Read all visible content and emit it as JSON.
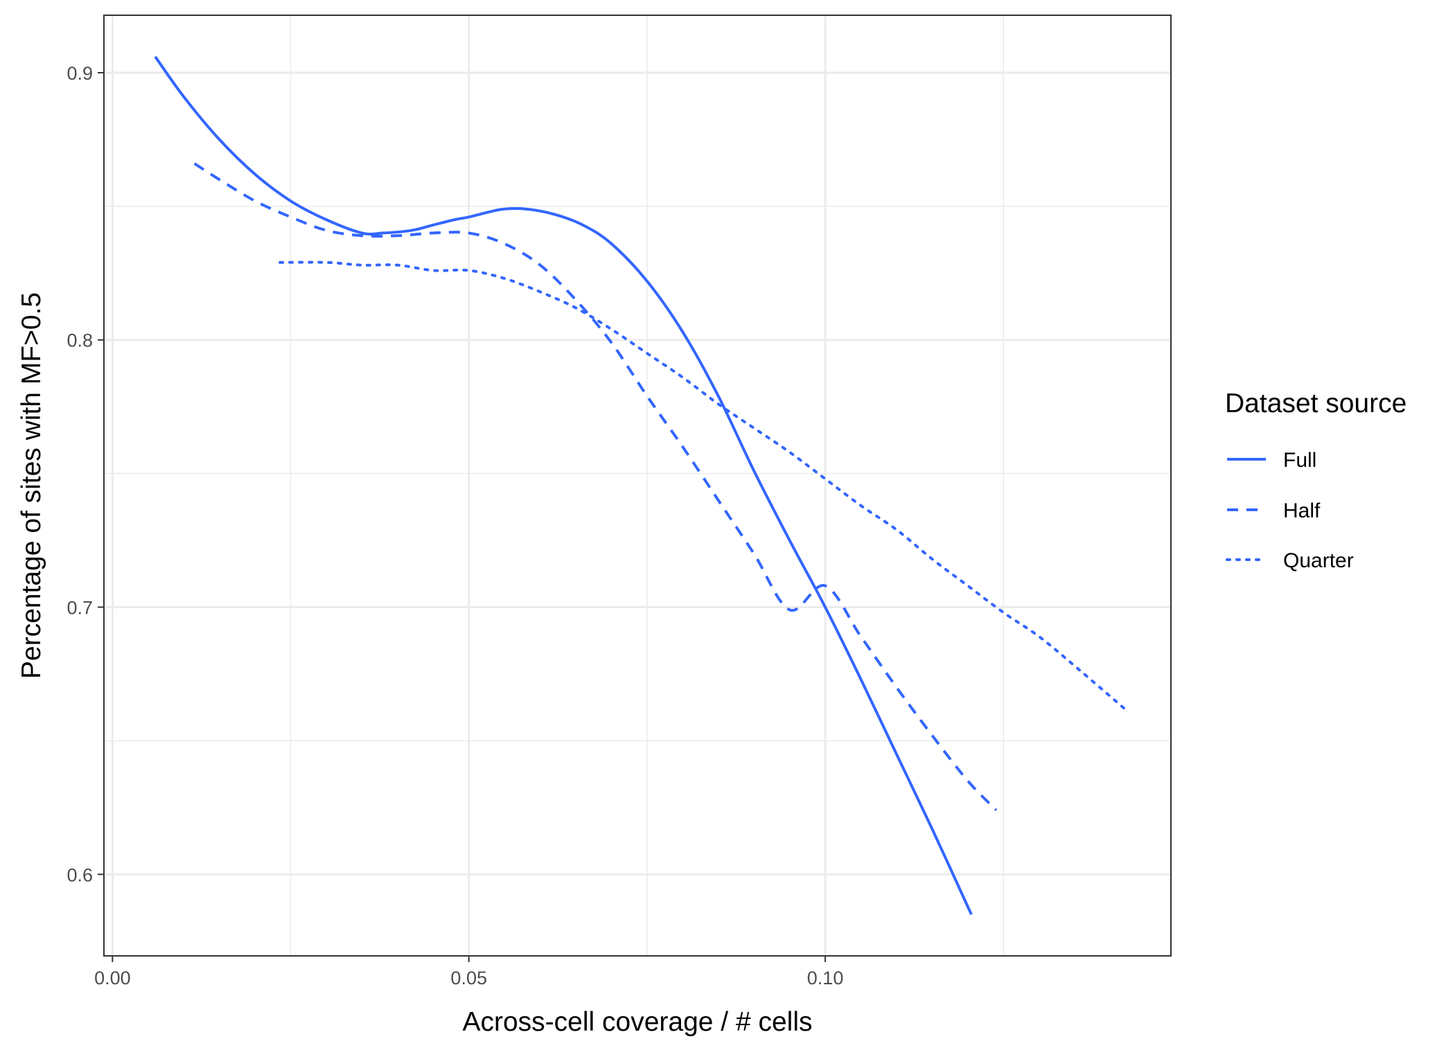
{
  "chart_data": {
    "type": "line",
    "title": "",
    "xlabel": "Across-cell coverage / # cells",
    "ylabel": "Percentage of sites with MF>0.5",
    "xlim": [
      -0.0012,
      0.1485
    ],
    "ylim": [
      0.5695,
      0.9215
    ],
    "x_ticks": [
      0.0,
      0.05,
      0.1
    ],
    "x_tick_labels": [
      "0.00",
      "0.05",
      "0.10"
    ],
    "x_minor_ticks": [
      0.025,
      0.075,
      0.125
    ],
    "y_ticks": [
      0.6,
      0.7,
      0.8,
      0.9
    ],
    "y_tick_labels": [
      "0.6",
      "0.7",
      "0.8",
      "0.9"
    ],
    "y_minor_ticks": [
      0.65,
      0.75,
      0.85
    ],
    "grid": true,
    "legend": {
      "title": "Dataset source",
      "position": "right",
      "entries": [
        "Full",
        "Half",
        "Quarter"
      ]
    },
    "colors": {
      "line": "#3366ff",
      "grid": "#ebebeb",
      "panel_border": "#333333"
    },
    "series": [
      {
        "name": "Full",
        "linetype": "solid",
        "x": [
          0.006,
          0.01,
          0.015,
          0.02,
          0.025,
          0.03,
          0.035,
          0.038,
          0.042,
          0.045,
          0.048,
          0.05,
          0.053,
          0.055,
          0.058,
          0.062,
          0.066,
          0.07,
          0.075,
          0.08,
          0.085,
          0.09,
          0.095,
          0.1,
          0.105,
          0.11,
          0.115,
          0.1205
        ],
        "y": [
          0.906,
          0.891,
          0.875,
          0.862,
          0.852,
          0.845,
          0.84,
          0.84,
          0.841,
          0.843,
          0.845,
          0.846,
          0.848,
          0.849,
          0.849,
          0.847,
          0.843,
          0.836,
          0.822,
          0.803,
          0.779,
          0.751,
          0.725,
          0.7,
          0.673,
          0.645,
          0.617,
          0.585
        ]
      },
      {
        "name": "Half",
        "linetype": "dashed",
        "x": [
          0.0115,
          0.015,
          0.02,
          0.025,
          0.03,
          0.035,
          0.04,
          0.045,
          0.05,
          0.055,
          0.06,
          0.065,
          0.07,
          0.075,
          0.08,
          0.085,
          0.09,
          0.095,
          0.1,
          0.105,
          0.11,
          0.115,
          0.12,
          0.124
        ],
        "y": [
          0.866,
          0.86,
          0.852,
          0.846,
          0.841,
          0.839,
          0.839,
          0.84,
          0.84,
          0.836,
          0.828,
          0.815,
          0.799,
          0.779,
          0.76,
          0.74,
          0.72,
          0.699,
          0.708,
          0.689,
          0.67,
          0.652,
          0.635,
          0.624
        ]
      },
      {
        "name": "Quarter",
        "linetype": "dotted",
        "x": [
          0.0235,
          0.03,
          0.035,
          0.04,
          0.045,
          0.05,
          0.055,
          0.06,
          0.065,
          0.07,
          0.075,
          0.08,
          0.085,
          0.09,
          0.095,
          0.1,
          0.105,
          0.11,
          0.115,
          0.12,
          0.125,
          0.13,
          0.135,
          0.142
        ],
        "y": [
          0.829,
          0.829,
          0.828,
          0.828,
          0.826,
          0.826,
          0.823,
          0.818,
          0.812,
          0.804,
          0.795,
          0.786,
          0.776,
          0.767,
          0.758,
          0.748,
          0.738,
          0.729,
          0.718,
          0.708,
          0.698,
          0.689,
          0.678,
          0.662
        ]
      }
    ]
  }
}
